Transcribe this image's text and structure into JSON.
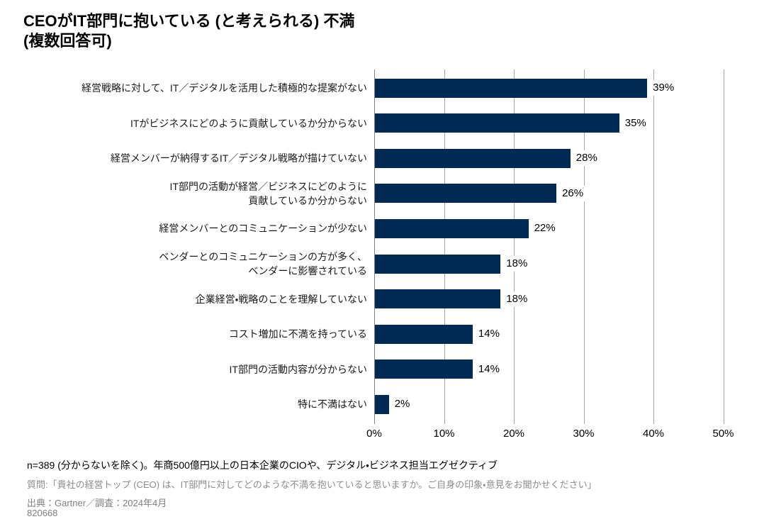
{
  "title": {
    "line1": "CEOがIT部門に抱いている (と考えられる) 不満",
    "line2": "(複数回答可)"
  },
  "chart_data": {
    "type": "bar",
    "orientation": "horizontal",
    "title": "CEOがIT部門に抱いている (と考えられる) 不満 (複数回答可)",
    "categories": [
      [
        "経営戦略に対して、IT／デジタルを活用した積極的な提案がない"
      ],
      [
        "ITがビジネスにどのように貢献しているか分からない"
      ],
      [
        "経営メンバーが納得するIT／デジタル戦略が描けていない"
      ],
      [
        "IT部門の活動が経営／ビジネスにどのように",
        "貢献しているか分からない"
      ],
      [
        "経営メンバーとのコミュニケーションが少ない"
      ],
      [
        "ベンダーとのコミュニケーションの方が多く、",
        "ベンダーに影響されている"
      ],
      [
        "企業経営・戦略のことを理解していない"
      ],
      [
        "コスト増加に不満を持っている"
      ],
      [
        "IT部門の活動内容が分からない"
      ],
      [
        "特に不満はない"
      ]
    ],
    "values": [
      39,
      35,
      28,
      26,
      22,
      18,
      18,
      14,
      14,
      2
    ],
    "value_labels": [
      "39%",
      "35%",
      "28%",
      "26%",
      "22%",
      "18%",
      "18%",
      "14%",
      "14%",
      "2%"
    ],
    "xlabel": "",
    "ylabel": "",
    "xlim": [
      0,
      50
    ],
    "x_ticks": [
      0,
      10,
      20,
      30,
      40,
      50
    ],
    "x_tick_labels": [
      "0%",
      "10%",
      "20%",
      "30%",
      "40%",
      "50%"
    ],
    "grid": true,
    "legend_position": "none",
    "bar_color": "#002a54",
    "gridline_color": "#a6a6a6",
    "axis_line_color": "#808080"
  },
  "footnotes": {
    "sample": "n=389 (分からないを除く)。年商500億円以上の日本企業のCIOや、デジタル・ビジネス担当エグゼクティブ",
    "question": "質問:「貴社の経営トップ (CEO) は、IT部門に対してどのような不満を抱いていると思いますか。ご自身の印象・意見をお聞かせください」",
    "source": "出典：Gartner／調査：2024年4月",
    "doc_id": "820668"
  }
}
